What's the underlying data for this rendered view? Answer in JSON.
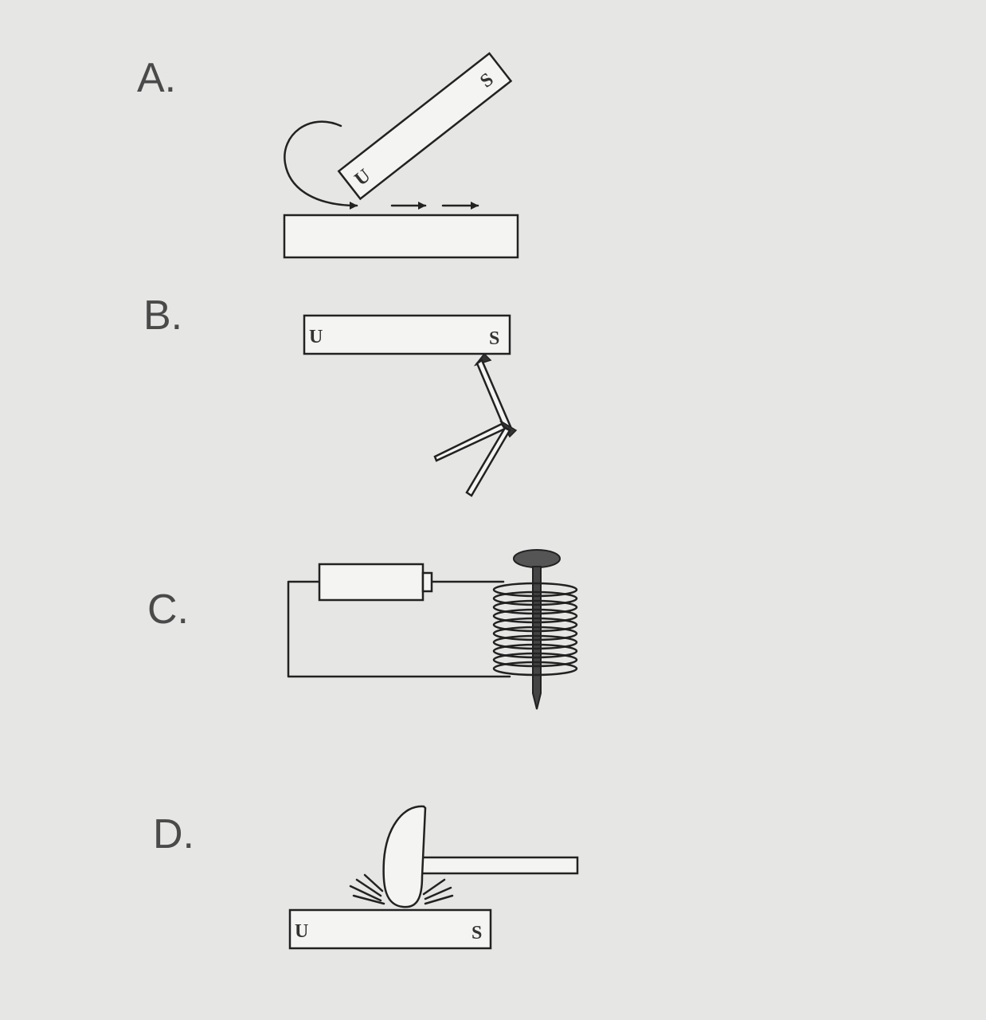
{
  "options": [
    {
      "label": "A.",
      "magnet_poles": [
        "U",
        "S"
      ]
    },
    {
      "label": "B.",
      "magnet_poles": [
        "U",
        "S"
      ]
    },
    {
      "label": "C."
    },
    {
      "label": "D.",
      "magnet_poles": [
        "U",
        "S"
      ]
    }
  ]
}
